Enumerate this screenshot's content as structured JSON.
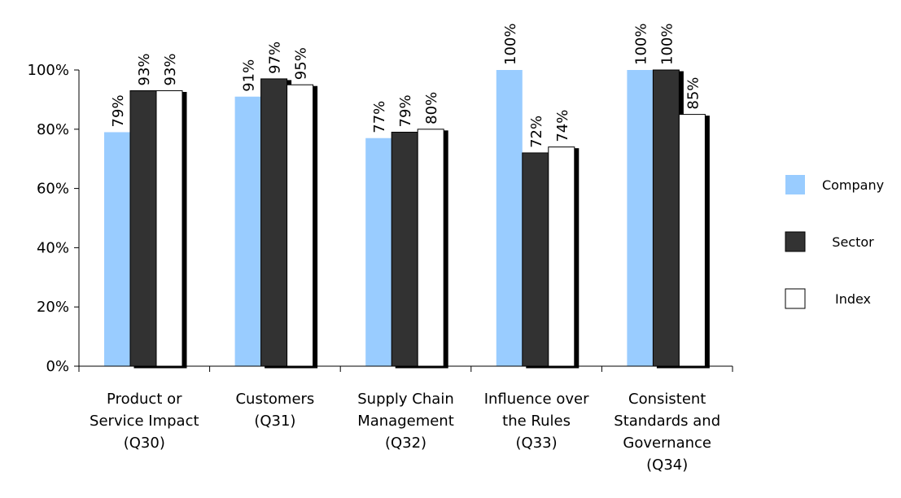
{
  "chart_data": {
    "type": "bar",
    "categories": [
      [
        "Product or",
        "Service Impact",
        "(Q30)"
      ],
      [
        "Customers",
        "(Q31)"
      ],
      [
        "Supply Chain",
        "Management",
        "(Q32)"
      ],
      [
        "Influence over",
        "the Rules",
        "(Q33)"
      ],
      [
        "Consistent",
        "Standards and",
        "Governance",
        "(Q34)"
      ]
    ],
    "series": [
      {
        "name": "Company",
        "color": "#99ccff",
        "values": [
          79,
          91,
          77,
          100,
          100
        ],
        "value_labels": [
          "79%",
          "91%",
          "77%",
          "100%",
          "100%"
        ]
      },
      {
        "name": "Sector",
        "color": "#333333",
        "values": [
          93,
          97,
          79,
          72,
          100
        ],
        "value_labels": [
          "93%",
          "97%",
          "79%",
          "72%",
          "100%"
        ]
      },
      {
        "name": "Index",
        "color": "#ffffff",
        "values": [
          93,
          95,
          80,
          74,
          85
        ],
        "value_labels": [
          "93%",
          "95%",
          "80%",
          "74%",
          "85%"
        ]
      }
    ],
    "ylim": [
      0,
      100
    ],
    "yticks": [
      {
        "value": 0,
        "label": "0%"
      },
      {
        "value": 20,
        "label": "20%"
      },
      {
        "value": 40,
        "label": "40%"
      },
      {
        "value": 60,
        "label": "60%"
      },
      {
        "value": 80,
        "label": "80%"
      },
      {
        "value": 100,
        "label": "100%"
      }
    ],
    "grid": false,
    "legend": "right"
  }
}
